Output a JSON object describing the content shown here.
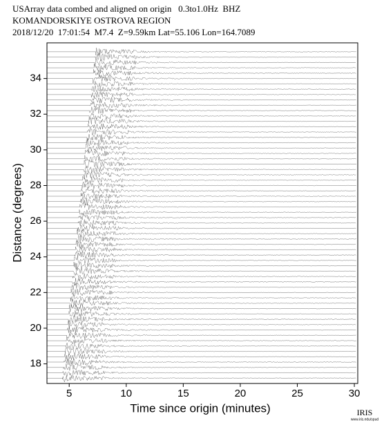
{
  "chart_data": {
    "type": "seismogram",
    "title_lines": [
      "USArray data combed and aligned on origin   0.3to1.0Hz  BHZ",
      "KOMANDORSKIYE OSTROVA REGION",
      "2018/12/20  17:01:54  M7.4  Z=9.59km Lat=55.106 Lon=164.7089"
    ],
    "xlabel": "Time since origin (minutes)",
    "ylabel": "Distance (degrees)",
    "xlim": [
      3.05,
      30.3
    ],
    "ylim": [
      16.9,
      36.0
    ],
    "xticks": [
      5,
      10,
      15,
      20,
      25,
      30
    ],
    "yticks": [
      18,
      20,
      22,
      24,
      26,
      28,
      30,
      32,
      34
    ],
    "color": "#555555",
    "distances": [
      17.2,
      17.5,
      17.8,
      18.1,
      18.4,
      18.7,
      19.0,
      19.3,
      19.6,
      19.9,
      20.2,
      20.5,
      20.8,
      21.1,
      21.4,
      21.7,
      22.0,
      22.3,
      22.6,
      22.9,
      23.2,
      23.5,
      23.8,
      24.1,
      24.4,
      24.7,
      25.0,
      25.3,
      25.6,
      25.9,
      26.2,
      26.5,
      26.8,
      27.1,
      27.4,
      27.7,
      28.0,
      28.3,
      28.6,
      28.9,
      29.2,
      29.5,
      29.8,
      30.1,
      30.4,
      30.7,
      31.0,
      31.3,
      31.6,
      31.9,
      32.2,
      32.5,
      32.8,
      33.1,
      33.4,
      33.7,
      34.0,
      34.3,
      34.6,
      34.9,
      35.2,
      35.5
    ],
    "onsets": [
      4.4,
      4.45,
      4.5,
      4.54,
      4.59,
      4.64,
      4.69,
      4.74,
      4.78,
      4.83,
      4.88,
      4.93,
      4.98,
      5.02,
      5.07,
      5.12,
      5.17,
      5.22,
      5.26,
      5.31,
      5.36,
      5.41,
      5.46,
      5.5,
      5.55,
      5.6,
      5.65,
      5.7,
      5.74,
      5.79,
      5.84,
      5.89,
      5.94,
      5.98,
      6.03,
      6.08,
      6.13,
      6.18,
      6.22,
      6.27,
      6.32,
      6.37,
      6.42,
      6.46,
      6.51,
      6.56,
      6.61,
      6.66,
      6.7,
      6.75,
      6.8,
      6.85,
      6.9,
      6.94,
      6.99,
      7.04,
      7.09,
      7.14,
      7.18,
      7.23,
      7.28,
      7.33
    ],
    "logo": "IRIS",
    "logo_url": "www.iris.edu/spud"
  }
}
